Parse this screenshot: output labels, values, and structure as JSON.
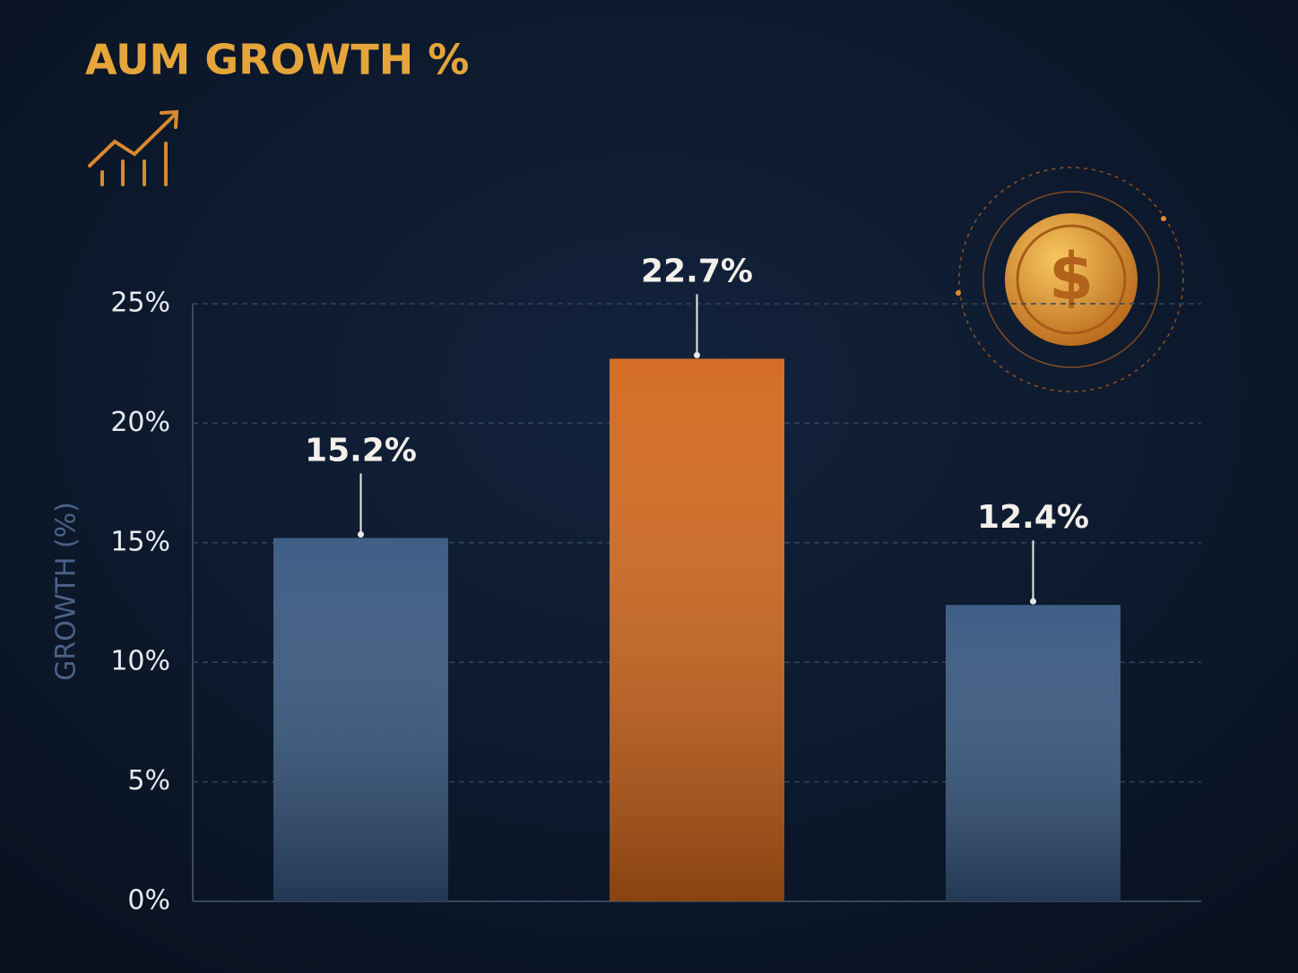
{
  "chart_data": {
    "type": "bar",
    "title": "AUM GROWTH %",
    "y_label": "GROWTH (%)",
    "categories": [
      null,
      null,
      null
    ],
    "values": [
      15.2,
      22.7,
      12.4
    ],
    "value_labels": [
      "15.2%",
      "22.7%",
      "12.4%"
    ],
    "colors": [
      "#35567f",
      "#d2661a",
      "#35567f"
    ],
    "ylim": [
      0,
      25
    ],
    "yticks": [
      {
        "value": 0,
        "label": "0%"
      },
      {
        "value": 5,
        "label": "5%"
      },
      {
        "value": 10,
        "label": "10%"
      },
      {
        "value": 15,
        "label": "15%"
      },
      {
        "value": 20,
        "label": "20%"
      },
      {
        "value": 25,
        "label": "25%"
      }
    ],
    "grid": true
  }
}
